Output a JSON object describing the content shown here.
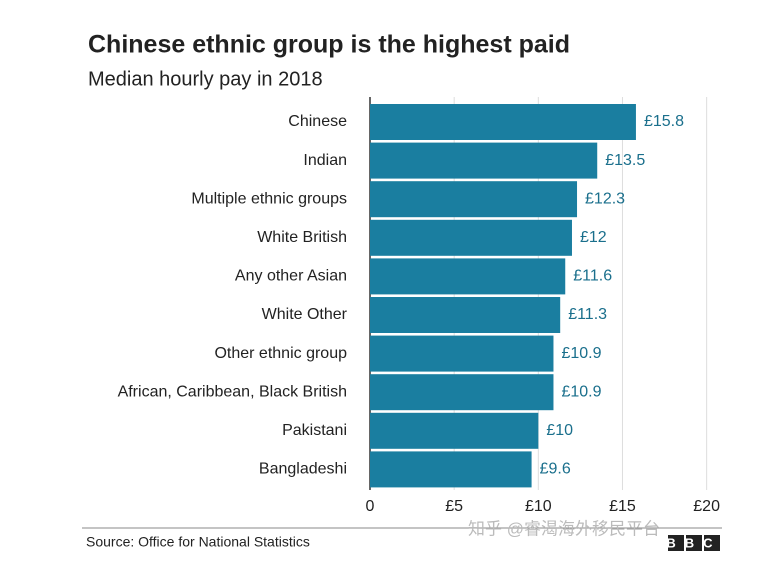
{
  "chart_data": {
    "type": "bar",
    "orientation": "horizontal",
    "title": "Chinese ethnic group is the highest paid",
    "subtitle": "Median hourly pay in 2018",
    "categories": [
      "Chinese",
      "Indian",
      "Multiple ethnic groups",
      "White British",
      "Any other Asian",
      "White Other",
      "Other ethnic group",
      "African, Caribbean, Black British",
      "Pakistani",
      "Bangladeshi"
    ],
    "values": [
      15.8,
      13.5,
      12.3,
      12,
      11.6,
      11.3,
      10.9,
      10.9,
      10,
      9.6
    ],
    "value_labels": [
      "£15.8",
      "£13.5",
      "£12.3",
      "£12",
      "£11.6",
      "£11.3",
      "£10.9",
      "£10.9",
      "£10",
      "£9.6"
    ],
    "color": "#1a7ea0",
    "label_color": "#1a6f8c",
    "xlim": [
      0,
      20.2
    ],
    "xticks": [
      0,
      {
        "value": 5,
        "label": "£5"
      },
      {
        "value": 10,
        "label": "£10"
      },
      {
        "value": 15,
        "label": "£15"
      },
      {
        "value": 20,
        "label": "£20"
      }
    ],
    "grid": true,
    "source": "Source: Office for National Statistics",
    "watermark": "知乎 @睿渴海外移民平台",
    "logo": "BBC"
  }
}
